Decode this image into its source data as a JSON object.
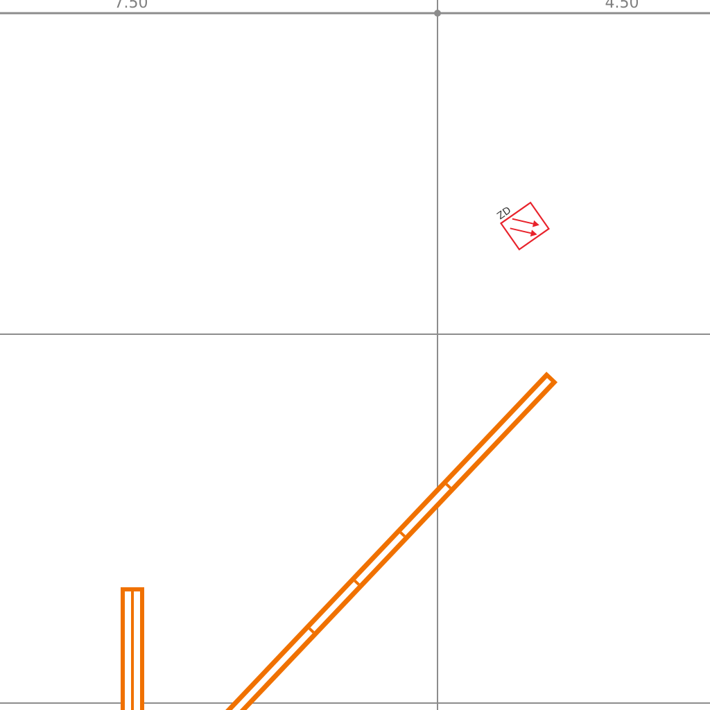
{
  "axis_labels": {
    "left": "7.50",
    "right": "4.50"
  },
  "symbol": {
    "label": "ZD",
    "color": "#e8222b"
  },
  "colors": {
    "grid": "#8c8c8c",
    "member": "#f07100",
    "background": "#ffffff",
    "text": "#333333"
  }
}
